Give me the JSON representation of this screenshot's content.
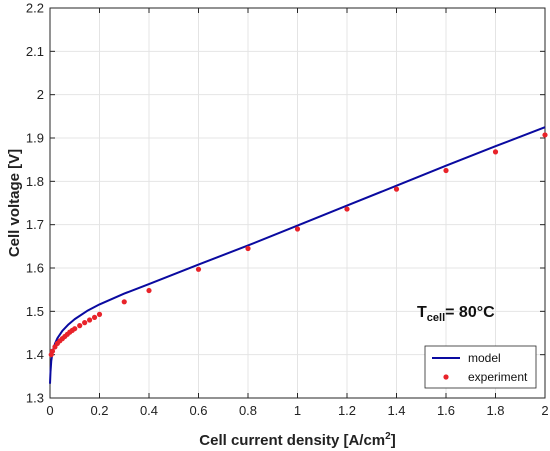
{
  "chart_data": {
    "type": "line",
    "title": "",
    "xlabel": "Cell current density [A/cm",
    "xlabel_sup": "2",
    "xlabel_end": "]",
    "ylabel": "Cell voltage [V]",
    "xlim": [
      0,
      2
    ],
    "ylim": [
      1.3,
      2.2
    ],
    "grid": true,
    "xticks": [
      0,
      0.2,
      0.4,
      0.6,
      0.8,
      1,
      1.2,
      1.4,
      1.6,
      1.8,
      2
    ],
    "xtick_labels": [
      "0",
      "0.2",
      "0.4",
      "0.6",
      "0.8",
      "1",
      "1.2",
      "1.4",
      "1.6",
      "1.8",
      "2"
    ],
    "yticks": [
      1.3,
      1.4,
      1.5,
      1.6,
      1.7,
      1.8,
      1.9,
      2.0,
      2.1,
      2.2
    ],
    "ytick_labels": [
      "1.3",
      "1.4",
      "1.5",
      "1.6",
      "1.7",
      "1.8",
      "1.9",
      "2",
      "2.1",
      "2.2"
    ],
    "legend_position": "bottom-right",
    "annotation": {
      "main": "T",
      "sub": "cell",
      "rest": "= 80°C"
    },
    "colors": {
      "model": "#0a0aa0",
      "experiment": "#e8232a",
      "grid": "#e4e4e4",
      "axis": "#262626"
    },
    "series": [
      {
        "name": "model",
        "kind": "line",
        "x": [
          0,
          0.002,
          0.005,
          0.01,
          0.02,
          0.03,
          0.05,
          0.075,
          0.1,
          0.15,
          0.2,
          0.3,
          0.4,
          0.6,
          0.8,
          1.0,
          1.2,
          1.4,
          1.6,
          1.8,
          2.0
        ],
        "y": [
          1.333,
          1.36,
          1.385,
          1.405,
          1.425,
          1.438,
          1.455,
          1.47,
          1.482,
          1.501,
          1.516,
          1.541,
          1.563,
          1.608,
          1.652,
          1.698,
          1.744,
          1.79,
          1.836,
          1.881,
          1.925
        ]
      },
      {
        "name": "experiment",
        "kind": "scatter",
        "x": [
          0.005,
          0.01,
          0.02,
          0.03,
          0.04,
          0.05,
          0.06,
          0.07,
          0.08,
          0.09,
          0.1,
          0.12,
          0.14,
          0.16,
          0.18,
          0.2,
          0.3,
          0.4,
          0.6,
          0.8,
          1.0,
          1.2,
          1.4,
          1.6,
          1.8,
          2.0
        ],
        "y": [
          1.4,
          1.408,
          1.418,
          1.426,
          1.432,
          1.437,
          1.442,
          1.447,
          1.452,
          1.456,
          1.46,
          1.467,
          1.474,
          1.48,
          1.486,
          1.493,
          1.522,
          1.548,
          1.597,
          1.645,
          1.69,
          1.736,
          1.782,
          1.825,
          1.868,
          1.907
        ]
      }
    ]
  }
}
